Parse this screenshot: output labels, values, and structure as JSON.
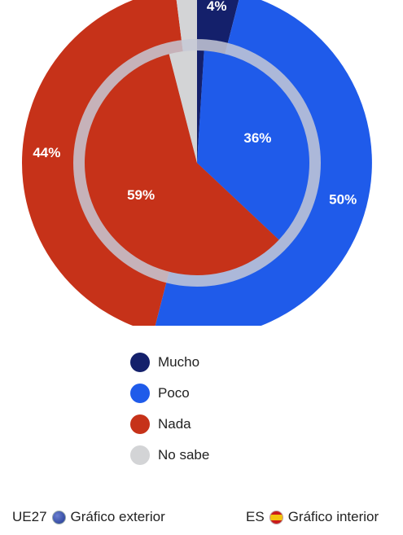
{
  "chart_data": {
    "type": "pie",
    "outer_ring": {
      "name": "UE27",
      "slices": [
        {
          "label": "Mucho",
          "value": 4,
          "text": "4%"
        },
        {
          "label": "Poco",
          "value": 50,
          "text": "50%"
        },
        {
          "label": "Nada",
          "value": 44,
          "text": "44%"
        },
        {
          "label": "No sabe",
          "value": 2,
          "text": ""
        }
      ]
    },
    "inner_pie": {
      "name": "ES",
      "slices": [
        {
          "label": "Mucho",
          "value": 1,
          "text": ""
        },
        {
          "label": "Poco",
          "value": 36,
          "text": "36%"
        },
        {
          "label": "Nada",
          "value": 59,
          "text": "59%"
        },
        {
          "label": "No sabe",
          "value": 4,
          "text": ""
        }
      ]
    },
    "colors": {
      "Mucho": "#14206b",
      "Poco": "#1f5bea",
      "Nada": "#c63219",
      "No sabe": "#d3d4d6"
    },
    "legend": [
      {
        "label": "Mucho",
        "color": "#14206b"
      },
      {
        "label": "Poco",
        "color": "#1f5bea"
      },
      {
        "label": "Nada",
        "color": "#c63219"
      },
      {
        "label": "No sabe",
        "color": "#d3d4d6"
      }
    ]
  },
  "footer": {
    "left_prefix": "UE27",
    "left_label": "Gráfico exterior",
    "right_prefix": "ES",
    "right_label": "Gráfico interior"
  }
}
